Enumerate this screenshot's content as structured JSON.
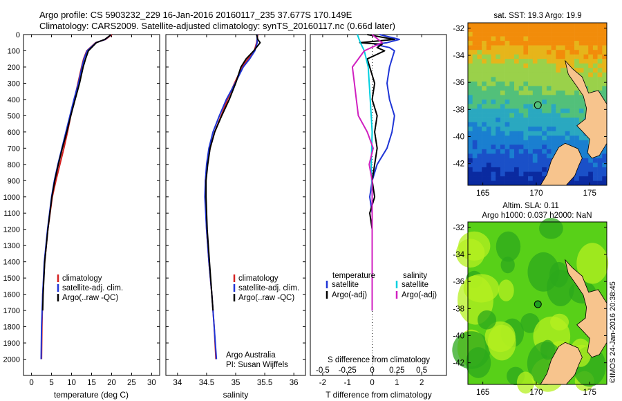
{
  "header": {
    "line1": "Argo profile: CS 5903232_229 16-Jan-2016 20160117_235 37.677S 170.149E",
    "line2": "Climatology: CARS2009. Satellite-adjusted climatology: synTS_20160117.nc (0.66d later)"
  },
  "maps": {
    "sst_title": "sat. SST: 19.3 Argo: 19.9",
    "sla_title1": "Altim. SLA: 0.11",
    "sla_title2": "Argo h1000: 0.037 h2000: NaN",
    "lat_ticks": [
      "-32",
      "-34",
      "-36",
      "-38",
      "-40",
      "-42"
    ],
    "lon_ticks": [
      "165",
      "170",
      "175"
    ],
    "argo_lon": 170.149,
    "argo_lat": -37.677,
    "land_color": "#f7c48d"
  },
  "credit": "©IMOS 24-Jan-2016 20:38:45",
  "panel_text": {
    "affil1": "Argo Australia",
    "affil2": "PI: Susan Wijffels",
    "legend_clim": "climatology",
    "legend_sat": "satellite-adj. clim.",
    "legend_argo": "Argo(..raw -QC)",
    "legend_temperature": "temperature",
    "legend_salinity": "salinity",
    "legend_satellite": "satellite",
    "legend_argo_adj": "Argo(-adj)"
  },
  "chart_data": [
    {
      "type": "line",
      "xlabel": "temperature (deg C)",
      "ylabel": "",
      "xlim": [
        -2,
        32
      ],
      "ylim": [
        0,
        2100
      ],
      "x_ticks": [
        "0",
        "5",
        "10",
        "15",
        "20",
        "25",
        "30"
      ],
      "y_ticks": [
        "0",
        "100",
        "200",
        "300",
        "400",
        "500",
        "600",
        "700",
        "800",
        "900",
        "1000",
        "1100",
        "1200",
        "1300",
        "1400",
        "1500",
        "1600",
        "1700",
        "1800",
        "1900",
        "2000"
      ],
      "legend": [
        "climatology",
        "satellite-adj. clim.",
        "Argo(..raw -QC)"
      ],
      "series": [
        {
          "name": "climatology",
          "color": "#d42020",
          "depth": [
            0,
            30,
            50,
            100,
            150,
            200,
            300,
            400,
            500,
            600,
            700,
            800,
            900,
            1000,
            1200,
            1400,
            1600,
            1800,
            2000
          ],
          "values": [
            20.1,
            18.5,
            16.0,
            13.8,
            13.0,
            12.5,
            11.6,
            10.7,
            9.8,
            9.0,
            8.1,
            7.1,
            6.1,
            5.2,
            4.1,
            3.3,
            2.8,
            2.6,
            2.5
          ]
        },
        {
          "name": "satellite-adj. clim.",
          "color": "#1f35d6",
          "depth": [
            0,
            30,
            50,
            100,
            150,
            200,
            300,
            400,
            500,
            600,
            700,
            800,
            900,
            1000,
            1200,
            1400,
            1600,
            1800,
            2000
          ],
          "values": [
            19.9,
            18.4,
            16.1,
            13.9,
            13.1,
            12.6,
            11.7,
            10.6,
            9.6,
            8.6,
            7.6,
            6.6,
            5.7,
            5.0,
            4.0,
            3.2,
            2.8,
            2.5,
            2.4
          ]
        },
        {
          "name": "Argo(..raw -QC)",
          "color": "#000000",
          "depth": [
            0,
            30,
            50,
            100,
            150,
            200,
            300,
            400,
            500,
            600,
            700,
            800,
            900,
            1000,
            1200,
            1400,
            1600,
            1700
          ],
          "values": [
            19.9,
            18.3,
            16.2,
            14.2,
            13.5,
            12.9,
            12.0,
            10.9,
            9.8,
            8.8,
            7.7,
            6.7,
            5.8,
            5.1,
            4.1,
            3.3,
            2.9,
            2.8
          ]
        }
      ]
    },
    {
      "type": "line",
      "xlabel": "salinity",
      "ylabel": "",
      "xlim": [
        33.8,
        36.2
      ],
      "ylim": [
        0,
        2100
      ],
      "x_ticks": [
        "34",
        "34.5",
        "35",
        "35.5",
        "36"
      ],
      "legend": [
        "climatology",
        "satellite-adj. clim.",
        "Argo(..raw -QC)"
      ],
      "series": [
        {
          "name": "climatology",
          "color": "#d42020",
          "depth": [
            0,
            50,
            100,
            150,
            200,
            300,
            400,
            500,
            600,
            700,
            800,
            900,
            1000,
            1200,
            1400,
            1600,
            1800,
            2000
          ],
          "values": [
            35.38,
            35.36,
            35.32,
            35.21,
            35.11,
            34.98,
            34.86,
            34.75,
            34.64,
            34.56,
            34.51,
            34.48,
            34.48,
            34.5,
            34.54,
            34.59,
            34.63,
            34.66
          ]
        },
        {
          "name": "satellite-adj. clim.",
          "color": "#1f35d6",
          "depth": [
            0,
            50,
            100,
            150,
            200,
            300,
            400,
            500,
            600,
            700,
            800,
            900,
            1000,
            1200,
            1400,
            1600,
            1800,
            2000
          ],
          "values": [
            35.37,
            35.37,
            35.33,
            35.24,
            35.13,
            34.99,
            34.84,
            34.72,
            34.61,
            34.54,
            34.5,
            34.48,
            34.47,
            34.5,
            34.54,
            34.59,
            34.63,
            34.67
          ]
        },
        {
          "name": "Argo(..raw -QC)",
          "color": "#000000",
          "depth": [
            0,
            30,
            50,
            100,
            150,
            200,
            300,
            400,
            500,
            600,
            700,
            800,
            900,
            1000,
            1200,
            1400,
            1600,
            1700
          ],
          "values": [
            35.36,
            35.38,
            35.42,
            35.31,
            35.18,
            35.09,
            35.0,
            34.89,
            34.76,
            34.64,
            34.56,
            34.52,
            34.49,
            34.49,
            34.51,
            34.55,
            34.59,
            34.61
          ]
        }
      ]
    },
    {
      "type": "line",
      "xlabel": "T difference from climatology",
      "xlabel_top": "S difference from climatology",
      "xlim": [
        -2.5,
        3
      ],
      "ylim": [
        0,
        2100
      ],
      "x_ticks": [
        "-2",
        "-1",
        "0",
        "1",
        "2"
      ],
      "x_ticks_s": [
        "-0.5",
        "-0.25",
        "0",
        "0.25",
        "0.5"
      ],
      "legend": [
        "temperature satellite",
        "temperature Argo(-adj)",
        "salinity satellite",
        "salinity Argo(-adj)"
      ],
      "series": [
        {
          "name": "temperature satellite",
          "color": "#1f35d6",
          "depth": [
            0,
            30,
            50,
            60,
            80,
            100,
            150,
            200,
            300,
            400,
            500,
            600,
            700,
            800,
            900,
            1000,
            1100,
            1200,
            1400,
            1600,
            1700
          ],
          "values": [
            0.3,
            1.1,
            0.6,
            0.1,
            0.7,
            0.9,
            0.8,
            0.7,
            0.6,
            0.7,
            0.9,
            0.8,
            0.6,
            0.2,
            0.0,
            -0.1,
            0.0,
            0.0,
            0.0,
            0.0,
            0.0
          ]
        },
        {
          "name": "temperature Argo(-adj)",
          "color": "#000000",
          "depth": [
            0,
            30,
            50,
            60,
            80,
            100,
            150,
            200,
            300,
            400,
            500,
            600,
            700,
            800,
            900,
            1000,
            1100,
            1200,
            1400,
            1600,
            1700
          ],
          "values": [
            -0.2,
            0.9,
            -0.5,
            0.4,
            0.2,
            0.5,
            -0.2,
            -0.1,
            0.1,
            0.0,
            0.2,
            0.1,
            0.2,
            0.1,
            0.0,
            0.1,
            -0.1,
            0.0,
            0.0,
            0.0,
            0.0
          ]
        },
        {
          "name": "salinity satellite",
          "color": "#00d0e0",
          "depth": [
            0,
            50,
            100,
            200,
            400,
            600,
            800,
            1000,
            1200,
            1400,
            1600,
            1700
          ],
          "values": [
            -0.15,
            -0.12,
            -0.08,
            -0.04,
            -0.02,
            0.0,
            -0.01,
            0.0,
            0.0,
            0.0,
            0.0,
            0.0
          ]
        },
        {
          "name": "salinity Argo(-adj)",
          "color": "#d020c0",
          "depth": [
            0,
            50,
            100,
            200,
            300,
            400,
            500,
            600,
            700,
            800,
            900,
            1000,
            1200,
            1400,
            1600,
            1700
          ],
          "values": [
            0.0,
            0.1,
            -0.08,
            -0.2,
            -0.18,
            -0.16,
            -0.14,
            -0.05,
            0.01,
            -0.03,
            0.0,
            0.0,
            0.0,
            0.0,
            0.0,
            0.0
          ]
        }
      ]
    }
  ]
}
